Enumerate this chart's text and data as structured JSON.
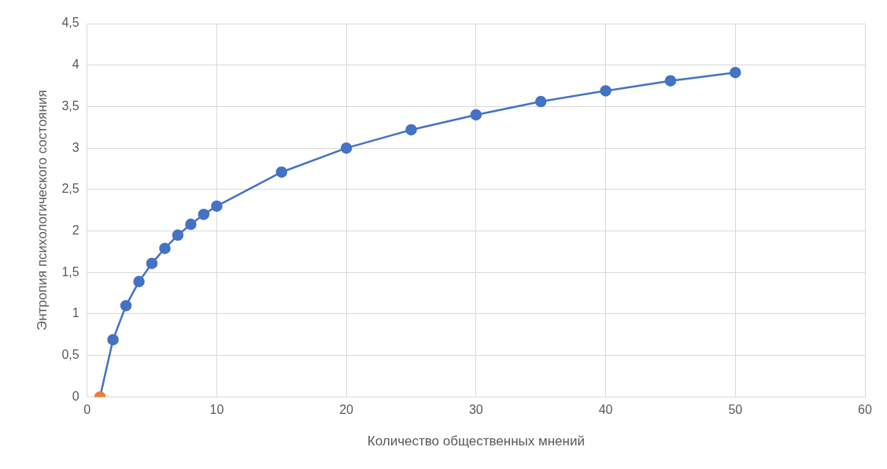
{
  "chart_data": {
    "type": "line",
    "xlabel": "Количество общественных мнений",
    "ylabel": "Энтропия психологического состояния",
    "x": [
      1,
      2,
      3,
      4,
      5,
      6,
      7,
      8,
      9,
      10,
      15,
      20,
      25,
      30,
      35,
      40,
      45,
      50
    ],
    "series": [
      {
        "color": "#4472c4",
        "colors": [
          "#ed7d31",
          "#4472c4",
          "#4472c4",
          "#4472c4",
          "#4472c4",
          "#4472c4",
          "#4472c4",
          "#4472c4",
          "#4472c4",
          "#4472c4",
          "#4472c4",
          "#4472c4",
          "#4472c4",
          "#4472c4",
          "#4472c4",
          "#4472c4",
          "#4472c4",
          "#4472c4"
        ],
        "values": [
          0,
          0.69,
          1.1,
          1.39,
          1.61,
          1.79,
          1.95,
          2.08,
          2.2,
          2.3,
          2.71,
          3.0,
          3.22,
          3.4,
          3.56,
          3.69,
          3.81,
          3.91
        ]
      }
    ],
    "xlim": [
      0,
      60
    ],
    "xticks": [
      0,
      10,
      20,
      30,
      40,
      50,
      60
    ],
    "ylim": [
      0,
      4.5
    ],
    "yticks": [
      0,
      {
        "value": 0.5,
        "label": "0,5"
      },
      1,
      {
        "value": 1.5,
        "label": "1,5"
      },
      2,
      {
        "value": 2.5,
        "label": "2,5"
      },
      3,
      {
        "value": 3.5,
        "label": "3,5"
      },
      4,
      {
        "value": 4.5,
        "label": "4,5"
      }
    ],
    "grid": true,
    "legend": false,
    "marker": "circle",
    "line_style": "solid"
  }
}
